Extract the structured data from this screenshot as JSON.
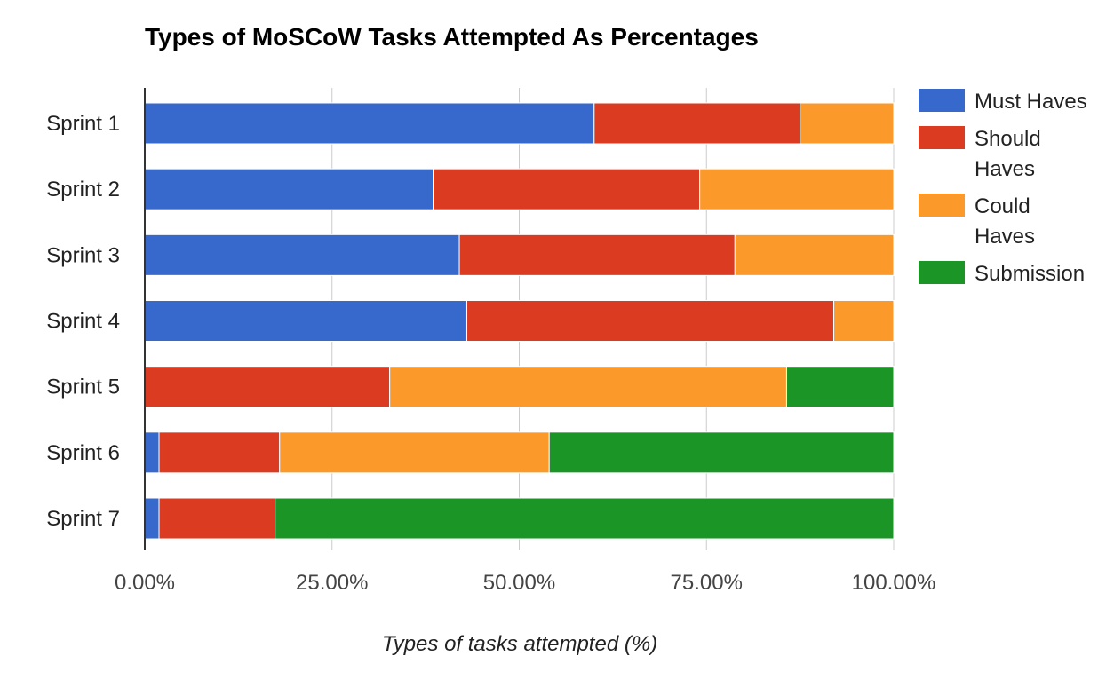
{
  "chart_data": {
    "type": "bar",
    "orientation": "horizontal",
    "stacked": true,
    "title": "Types of MoSCoW Tasks Attempted As Percentages",
    "xlabel": "Types of tasks attempted (%)",
    "ylabel": "",
    "xlim": [
      0,
      100
    ],
    "xticks": [
      "0.00%",
      "25.00%",
      "50.00%",
      "75.00%",
      "100.00%"
    ],
    "grid": true,
    "legend_position": "right",
    "categories": [
      "Sprint 1",
      "Sprint 2",
      "Sprint 3",
      "Sprint 4",
      "Sprint 5",
      "Sprint 6",
      "Sprint 7"
    ],
    "series": [
      {
        "name": "Must Haves",
        "legend_lines": [
          "Must Haves"
        ],
        "color": "#3669cb",
        "values": [
          60,
          38.5,
          42,
          43,
          0,
          1.9,
          1.9
        ]
      },
      {
        "name": "Should Haves",
        "legend_lines": [
          "Should",
          "Haves"
        ],
        "color": "#da3b21",
        "values": [
          27.5,
          35.6,
          36.8,
          49,
          32.7,
          16.1,
          15.5
        ]
      },
      {
        "name": "Could Haves",
        "legend_lines": [
          "Could",
          "Haves"
        ],
        "color": "#fb9a2a",
        "values": [
          12.5,
          25.9,
          21.2,
          8,
          53,
          36,
          0
        ]
      },
      {
        "name": "Submission",
        "legend_lines": [
          "Submission"
        ],
        "color": "#1c9527",
        "values": [
          0,
          0,
          0,
          0,
          14.3,
          46,
          82.6
        ]
      }
    ]
  }
}
